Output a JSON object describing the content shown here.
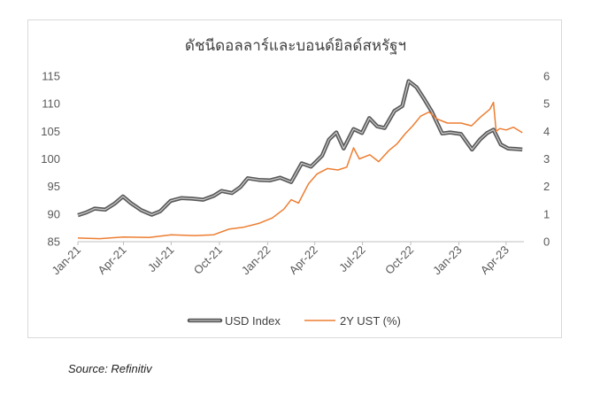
{
  "source": "Source: Refinitiv",
  "chart_data": {
    "type": "line",
    "title": "ดัชนีดอลลาร์และบอนด์ยิลด์สหรัฐฯ",
    "x_ticks": [
      "Jan-21",
      "Apr-21",
      "Jul-21",
      "Oct-21",
      "Jan-22",
      "Apr-22",
      "Jul-22",
      "Oct-22",
      "Jan-23",
      "Apr-23"
    ],
    "y_left": {
      "ticks": [
        85,
        90,
        95,
        100,
        105,
        110,
        115
      ],
      "lim": [
        85,
        115
      ]
    },
    "y_right": {
      "ticks": [
        0,
        1,
        2,
        3,
        4,
        5,
        6
      ],
      "lim": [
        0,
        6
      ]
    },
    "legend_position": "bottom",
    "series": [
      {
        "name": "USD Index",
        "axis": "left",
        "color": "#7f7f7f",
        "x": [
          "2021-01-04",
          "2021-01-20",
          "2021-02-05",
          "2021-02-25",
          "2021-03-15",
          "2021-03-31",
          "2021-04-15",
          "2021-05-05",
          "2021-05-25",
          "2021-06-10",
          "2021-06-30",
          "2021-07-20",
          "2021-08-10",
          "2021-08-31",
          "2021-09-20",
          "2021-10-05",
          "2021-10-25",
          "2021-11-10",
          "2021-11-24",
          "2021-12-15",
          "2022-01-05",
          "2022-01-25",
          "2022-02-15",
          "2022-03-07",
          "2022-03-25",
          "2022-04-15",
          "2022-04-28",
          "2022-05-12",
          "2022-05-26",
          "2022-06-14",
          "2022-06-30",
          "2022-07-14",
          "2022-07-29",
          "2022-08-12",
          "2022-08-31",
          "2022-09-15",
          "2022-09-27",
          "2022-10-12",
          "2022-10-25",
          "2022-11-10",
          "2022-11-30",
          "2022-12-15",
          "2023-01-05",
          "2023-01-26",
          "2023-02-10",
          "2023-02-24",
          "2023-03-08",
          "2023-03-22",
          "2023-04-05",
          "2023-04-20",
          "2023-05-02"
        ],
        "values": [
          89.8,
          90.3,
          91.0,
          90.8,
          91.9,
          93.2,
          92.0,
          90.7,
          89.9,
          90.5,
          92.4,
          92.9,
          92.8,
          92.6,
          93.3,
          94.2,
          93.8,
          94.9,
          96.5,
          96.2,
          96.1,
          96.6,
          95.8,
          99.2,
          98.6,
          100.6,
          103.5,
          104.8,
          101.9,
          105.4,
          104.7,
          107.4,
          105.9,
          105.6,
          108.7,
          109.6,
          114.1,
          113.0,
          111.1,
          108.6,
          104.6,
          104.8,
          104.5,
          101.7,
          103.5,
          104.7,
          105.3,
          102.6,
          101.9,
          101.8,
          101.7
        ]
      },
      {
        "name": "2Y UST (%)",
        "axis": "right",
        "color": "#ed7d31",
        "x": [
          "2021-01-04",
          "2021-02-15",
          "2021-04-01",
          "2021-05-20",
          "2021-07-01",
          "2021-08-15",
          "2021-09-20",
          "2021-10-20",
          "2021-11-15",
          "2021-12-15",
          "2022-01-10",
          "2022-02-01",
          "2022-02-15",
          "2022-03-01",
          "2022-03-20",
          "2022-04-05",
          "2022-04-25",
          "2022-05-15",
          "2022-06-01",
          "2022-06-14",
          "2022-06-25",
          "2022-07-15",
          "2022-08-01",
          "2022-08-20",
          "2022-09-05",
          "2022-09-20",
          "2022-10-05",
          "2022-10-20",
          "2022-11-05",
          "2022-11-20",
          "2022-12-10",
          "2023-01-05",
          "2023-01-25",
          "2023-02-10",
          "2023-03-01",
          "2023-03-08",
          "2023-03-13",
          "2023-03-20",
          "2023-04-01",
          "2023-04-15",
          "2023-05-02"
        ],
        "values": [
          0.13,
          0.11,
          0.17,
          0.15,
          0.25,
          0.22,
          0.25,
          0.46,
          0.52,
          0.66,
          0.86,
          1.18,
          1.52,
          1.4,
          2.1,
          2.45,
          2.65,
          2.6,
          2.7,
          3.4,
          3.0,
          3.15,
          2.9,
          3.3,
          3.55,
          3.9,
          4.2,
          4.55,
          4.7,
          4.45,
          4.3,
          4.3,
          4.2,
          4.5,
          4.8,
          5.05,
          4.0,
          4.1,
          4.05,
          4.15,
          3.95
        ]
      }
    ]
  }
}
